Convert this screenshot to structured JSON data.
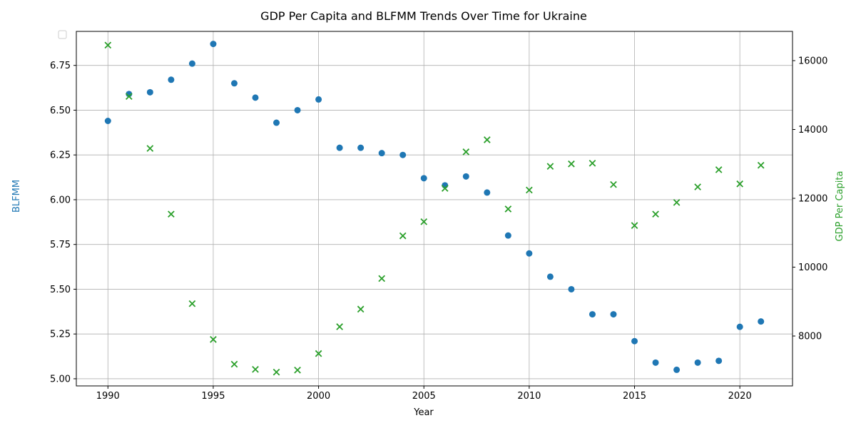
{
  "chart_data": {
    "type": "scatter",
    "title": "GDP Per Capita and BLFMM Trends Over Time for Ukraine",
    "xlabel": "Year",
    "ylabel_left": "BLFMM",
    "ylabel_right": "GDP Per Capita",
    "xlim": [
      1988.5,
      2022.5
    ],
    "ylim_left": [
      4.96,
      6.94
    ],
    "ylim_right": [
      6550,
      16850
    ],
    "x_ticks": [
      1990,
      1995,
      2000,
      2005,
      2010,
      2015,
      2020
    ],
    "y_ticks_left": [
      5.0,
      5.25,
      5.5,
      5.75,
      6.0,
      6.25,
      6.5,
      6.75
    ],
    "y_ticks_right": [
      8000,
      10000,
      12000,
      14000,
      16000
    ],
    "grid": true,
    "legend": "top-left, empty",
    "series": [
      {
        "axis": "left",
        "marker": "circle",
        "color": "#1f77b4",
        "x": [
          1990,
          1991,
          1992,
          1993,
          1994,
          1995,
          1996,
          1997,
          1998,
          1999,
          2000,
          2001,
          2002,
          2003,
          2004,
          2005,
          2006,
          2007,
          2008,
          2009,
          2010,
          2011,
          2012,
          2013,
          2014,
          2015,
          2016,
          2017,
          2018,
          2019,
          2020,
          2021
        ],
        "values": [
          6.44,
          6.59,
          6.6,
          6.67,
          6.76,
          6.87,
          6.65,
          6.57,
          6.43,
          6.5,
          6.56,
          6.29,
          6.29,
          6.26,
          6.25,
          6.12,
          6.08,
          6.13,
          6.04,
          5.8,
          5.7,
          5.57,
          5.5,
          5.36,
          5.36,
          5.21,
          5.09,
          5.05,
          5.09,
          5.1,
          5.29,
          5.32
        ]
      },
      {
        "axis": "right",
        "marker": "x",
        "color": "#2ca02c",
        "x": [
          1990,
          1991,
          1992,
          1993,
          1994,
          1995,
          1996,
          1997,
          1998,
          1999,
          2000,
          2001,
          2002,
          2003,
          2004,
          2005,
          2006,
          2007,
          2008,
          2009,
          2010,
          2011,
          2012,
          2013,
          2014,
          2015,
          2016,
          2017,
          2018,
          2019,
          2020,
          2021
        ],
        "values": [
          16450,
          14960,
          13450,
          11540,
          8940,
          7900,
          7180,
          7030,
          6950,
          7010,
          7490,
          8270,
          8780,
          9670,
          10910,
          11320,
          12290,
          13350,
          13700,
          11690,
          12240,
          12930,
          13000,
          13020,
          12400,
          11210,
          11540,
          11880,
          12330,
          12830,
          12420,
          12960
        ]
      }
    ]
  }
}
